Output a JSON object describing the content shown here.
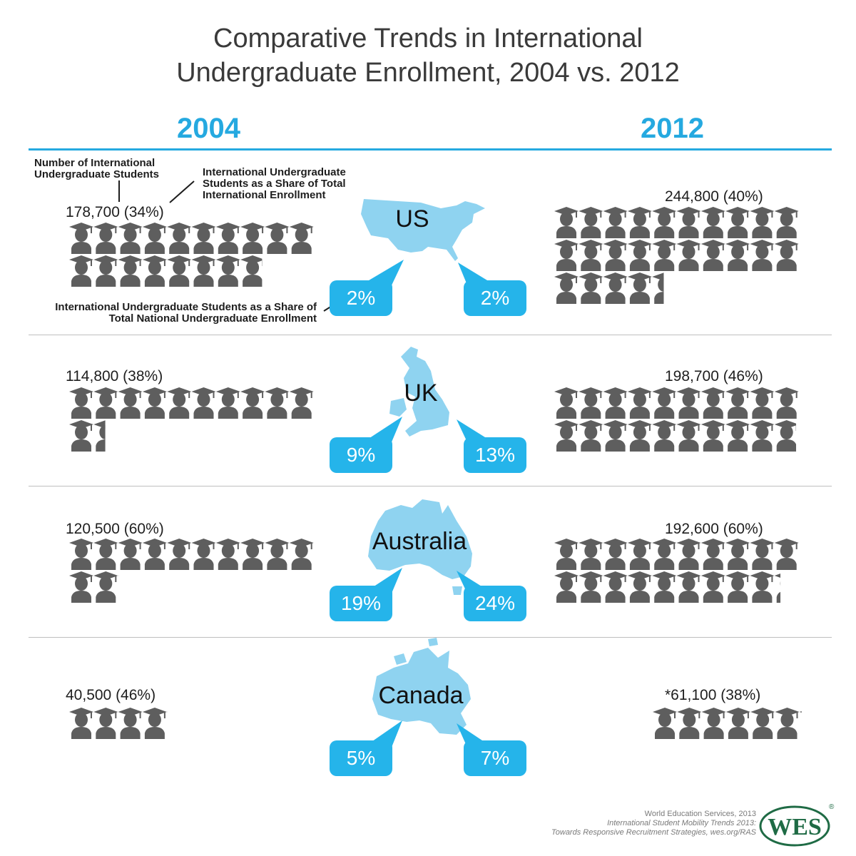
{
  "title": {
    "line1": "Comparative Trends in International",
    "line2": "Undergraduate Enrollment, 2004 vs. 2012"
  },
  "years": {
    "left": "2004",
    "right": "2012"
  },
  "annotations": {
    "number": [
      "Number of International",
      "Undergraduate Students"
    ],
    "share_total": [
      "International Undergraduate",
      "Students as a Share of Total",
      "International Enrollment"
    ],
    "share_national": [
      "International Undergraduate Students as a Share of",
      "Total National Undergraduate Enrollment"
    ]
  },
  "chart_data": {
    "type": "table",
    "icon_unit": 10000,
    "rows": [
      {
        "country": "US",
        "y2004": {
          "label": "178,700 (34%)",
          "students": 178700,
          "share_of_international": 34,
          "share_of_national": "2%"
        },
        "y2012": {
          "label": "244,800 (40%)",
          "students": 244800,
          "share_of_international": 40,
          "share_of_national": "2%"
        }
      },
      {
        "country": "UK",
        "y2004": {
          "label": "114,800 (38%)",
          "students": 114800,
          "share_of_international": 38,
          "share_of_national": "9%"
        },
        "y2012": {
          "label": "198,700 (46%)",
          "students": 198700,
          "share_of_international": 46,
          "share_of_national": "13%"
        }
      },
      {
        "country": "Australia",
        "y2004": {
          "label": "120,500 (60%)",
          "students": 120500,
          "share_of_international": 60,
          "share_of_national": "19%"
        },
        "y2012": {
          "label": "192,600 (60%)",
          "students": 192600,
          "share_of_international": 60,
          "share_of_national": "24%"
        }
      },
      {
        "country": "Canada",
        "y2004": {
          "label": "40,500 (46%)",
          "students": 40500,
          "share_of_international": 46,
          "share_of_national": "5%"
        },
        "y2012": {
          "label": "*61,100 (38%)",
          "students": 61100,
          "share_of_international": 38,
          "share_of_national": "7%"
        }
      }
    ]
  },
  "colors": {
    "accent": "#25a9e0",
    "bubble": "#25b4ea",
    "map": "#8fd3f0",
    "icon": "#5e5e5e",
    "logo": "#1f6b45"
  },
  "source": {
    "line1": "World Education Services, 2013",
    "line2": "International Student Mobility Trends 2013:",
    "line3": "Towards Responsive Recruitment Strategies, wes.org/RAS"
  },
  "logo": {
    "text": "WES",
    "mark": "®"
  }
}
